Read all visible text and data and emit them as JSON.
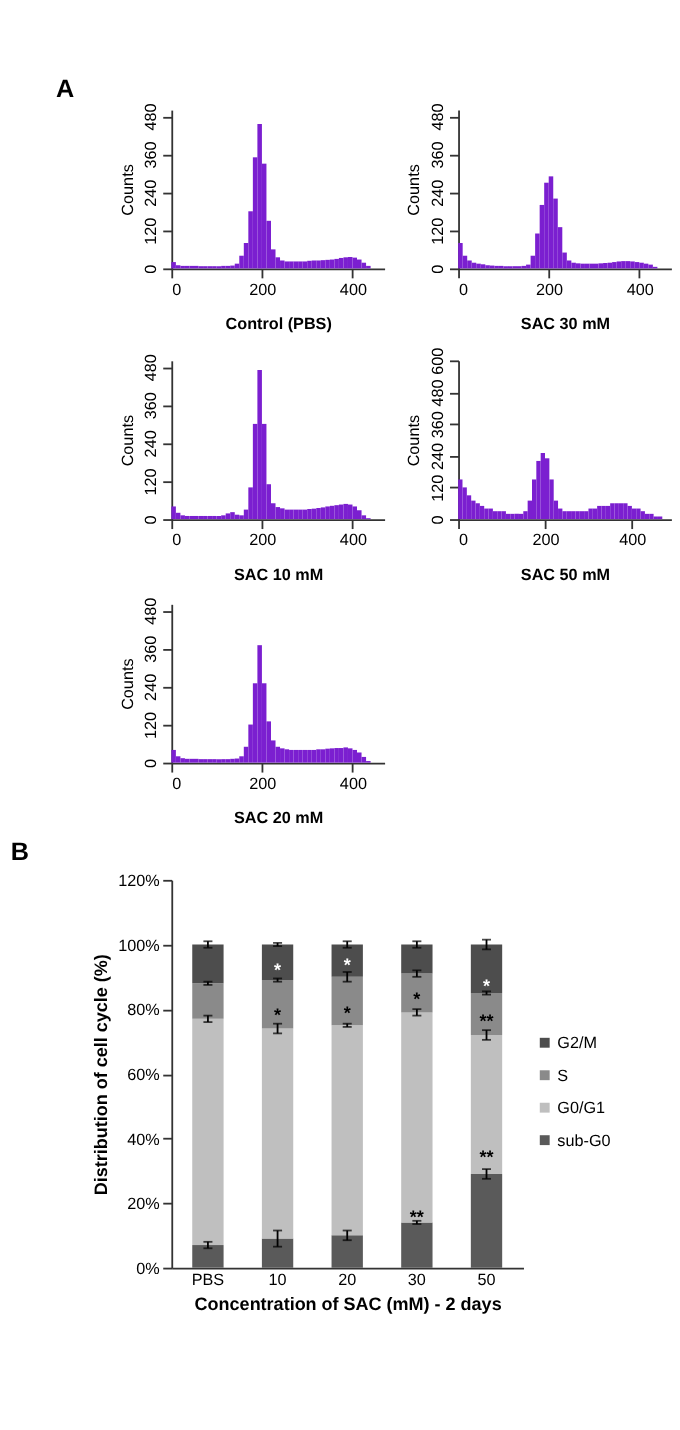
{
  "chart_data": [
    {
      "type": "histogram",
      "title": "A",
      "xlabel": "Control (PBS)",
      "ylabel": "Counts",
      "color": "#7b1fd0",
      "xlim": [
        0,
        470
      ],
      "xticks": [
        0,
        200,
        400
      ],
      "ylim": [
        0,
        500
      ],
      "yticks": [
        0,
        120,
        240,
        360,
        480
      ],
      "bins": [
        0,
        10,
        20,
        30,
        40,
        50,
        60,
        70,
        80,
        90,
        100,
        110,
        120,
        130,
        140,
        150,
        160,
        170,
        180,
        190,
        200,
        210,
        220,
        230,
        240,
        250,
        260,
        270,
        280,
        290,
        300,
        310,
        320,
        330,
        340,
        350,
        360,
        370,
        380,
        390,
        400,
        410,
        420,
        430,
        440
      ],
      "values": [
        20,
        10,
        8,
        8,
        8,
        8,
        7,
        7,
        7,
        7,
        7,
        8,
        8,
        9,
        15,
        40,
        80,
        180,
        350,
        455,
        330,
        150,
        60,
        35,
        25,
        22,
        22,
        22,
        22,
        22,
        24,
        25,
        25,
        26,
        27,
        28,
        30,
        33,
        35,
        36,
        34,
        28,
        18,
        8
      ]
    },
    {
      "type": "histogram",
      "xlabel": "SAC 30 mM",
      "ylabel": "Counts",
      "color": "#7b1fd0",
      "xlim": [
        0,
        470
      ],
      "xticks": [
        0,
        200,
        400
      ],
      "ylim": [
        0,
        500
      ],
      "yticks": [
        0,
        120,
        240,
        360,
        480
      ],
      "bins": [
        0,
        10,
        20,
        30,
        40,
        50,
        60,
        70,
        80,
        90,
        100,
        110,
        120,
        130,
        140,
        150,
        160,
        170,
        180,
        190,
        200,
        210,
        220,
        230,
        240,
        250,
        260,
        270,
        280,
        290,
        300,
        310,
        320,
        330,
        340,
        350,
        360,
        370,
        380,
        390,
        400,
        410,
        420,
        430,
        440
      ],
      "values": [
        80,
        40,
        25,
        18,
        15,
        13,
        10,
        9,
        8,
        8,
        7,
        7,
        7,
        7,
        8,
        12,
        40,
        110,
        200,
        270,
        290,
        220,
        130,
        50,
        25,
        18,
        16,
        15,
        15,
        15,
        15,
        16,
        17,
        18,
        20,
        22,
        23,
        23,
        22,
        20,
        18,
        15,
        12,
        5
      ]
    },
    {
      "type": "histogram",
      "xlabel": "SAC 10 mM",
      "ylabel": "Counts",
      "color": "#7b1fd0",
      "xlim": [
        0,
        470
      ],
      "xticks": [
        0,
        200,
        400
      ],
      "ylim": [
        0,
        500
      ],
      "yticks": [
        0,
        120,
        240,
        360,
        480
      ],
      "bins": [
        0,
        10,
        20,
        30,
        40,
        50,
        60,
        70,
        80,
        90,
        100,
        110,
        120,
        130,
        140,
        150,
        160,
        170,
        180,
        190,
        200,
        210,
        220,
        230,
        240,
        250,
        260,
        270,
        280,
        290,
        300,
        310,
        320,
        330,
        340,
        350,
        360,
        370,
        380,
        390,
        400,
        410,
        420,
        430,
        440
      ],
      "values": [
        40,
        20,
        12,
        10,
        10,
        10,
        10,
        10,
        10,
        10,
        10,
        12,
        18,
        22,
        14,
        12,
        30,
        100,
        300,
        470,
        300,
        110,
        50,
        38,
        34,
        30,
        30,
        30,
        30,
        30,
        32,
        33,
        35,
        37,
        40,
        42,
        44,
        46,
        48,
        46,
        40,
        28,
        12,
        3
      ]
    },
    {
      "type": "histogram",
      "xlabel": "SAC 50 mM",
      "ylabel": "Counts",
      "color": "#7b1fd0",
      "xlim": [
        0,
        490
      ],
      "xticks": [
        0,
        200,
        400
      ],
      "ylim": [
        0,
        600
      ],
      "yticks": [
        0,
        120,
        240,
        360,
        480,
        600
      ],
      "bins": [
        0,
        10,
        20,
        30,
        40,
        50,
        60,
        70,
        80,
        90,
        100,
        110,
        120,
        130,
        140,
        150,
        160,
        170,
        180,
        190,
        200,
        210,
        220,
        230,
        240,
        250,
        260,
        270,
        280,
        290,
        300,
        310,
        320,
        330,
        340,
        350,
        360,
        370,
        380,
        390,
        400,
        410,
        420,
        430,
        440,
        450,
        460,
        470,
        480
      ],
      "values": [
        150,
        120,
        90,
        70,
        60,
        50,
        40,
        40,
        30,
        30,
        30,
        20,
        20,
        20,
        20,
        30,
        70,
        150,
        220,
        250,
        230,
        150,
        70,
        40,
        30,
        30,
        30,
        30,
        30,
        30,
        40,
        40,
        50,
        50,
        50,
        60,
        60,
        60,
        60,
        50,
        40,
        40,
        30,
        20,
        20,
        10,
        10,
        0
      ]
    },
    {
      "type": "histogram",
      "xlabel": "SAC 20 mM",
      "ylabel": "Counts",
      "color": "#7b1fd0",
      "xlim": [
        0,
        470
      ],
      "xticks": [
        0,
        200,
        400
      ],
      "ylim": [
        0,
        500
      ],
      "yticks": [
        0,
        120,
        240,
        360,
        480
      ],
      "bins": [
        0,
        10,
        20,
        30,
        40,
        50,
        60,
        70,
        80,
        90,
        100,
        110,
        120,
        130,
        140,
        150,
        160,
        170,
        180,
        190,
        200,
        210,
        220,
        230,
        240,
        250,
        260,
        270,
        280,
        290,
        300,
        310,
        320,
        330,
        340,
        350,
        360,
        370,
        380,
        390,
        400,
        410,
        420,
        430,
        440
      ],
      "values": [
        40,
        20,
        14,
        12,
        12,
        12,
        11,
        11,
        11,
        11,
        11,
        11,
        11,
        12,
        13,
        20,
        50,
        120,
        250,
        370,
        250,
        130,
        70,
        50,
        45,
        42,
        40,
        40,
        40,
        40,
        40,
        40,
        42,
        42,
        44,
        45,
        46,
        46,
        48,
        45,
        40,
        32,
        18,
        5
      ]
    },
    {
      "type": "bar",
      "title": "B",
      "stacked": true,
      "xlabel": "Concentration of SAC (mM) - 2 days",
      "ylabel": "Distribution of cell cycle (%)",
      "legend": "right",
      "categories": [
        "PBS",
        "10",
        "20",
        "30",
        "50"
      ],
      "ylim": [
        0,
        120
      ],
      "yticks": [
        {
          "value": 0,
          "label": "0%"
        },
        {
          "value": 20,
          "label": "20%"
        },
        {
          "value": 40,
          "label": "40%"
        },
        {
          "value": 60,
          "label": "60%"
        },
        {
          "value": 80,
          "label": "80%"
        },
        {
          "value": 100,
          "label": "100%"
        },
        {
          "value": 120,
          "label": "120%"
        }
      ],
      "series": [
        {
          "name": "sub-G0",
          "color": "#5a5a5a",
          "values": [
            7,
            9,
            10,
            14,
            29
          ],
          "errors": [
            1,
            2.5,
            1.5,
            0.5,
            1.5
          ]
        },
        {
          "name": "G0/G1",
          "color": "#bfbfbf",
          "values": [
            70,
            65,
            65,
            65,
            43
          ],
          "errors": [
            1,
            1.5,
            0.5,
            1,
            1.5
          ]
        },
        {
          "name": "S",
          "color": "#8a8a8a",
          "values": [
            11,
            15,
            15,
            12,
            13
          ],
          "errors": [
            0.5,
            0.5,
            1.5,
            1,
            0.5
          ]
        },
        {
          "name": "G2/M",
          "color": "#4d4d4d",
          "values": [
            12,
            11,
            10,
            9,
            15
          ],
          "errors": [
            1,
            0.5,
            1,
            1,
            1.5
          ]
        }
      ],
      "annotations": [
        {
          "text": "*",
          "x": "10",
          "y": 92
        },
        {
          "text": "*",
          "x": "10",
          "y": 78
        },
        {
          "text": "*",
          "x": "20",
          "y": 93.5
        },
        {
          "text": "*",
          "x": "20",
          "y": 78.5
        },
        {
          "text": "*",
          "x": "30",
          "y": 83
        },
        {
          "text": "**",
          "x": "30",
          "y": 15.5
        },
        {
          "text": "*",
          "x": "50",
          "y": 87
        },
        {
          "text": "**",
          "x": "50",
          "y": 76
        },
        {
          "text": "**",
          "x": "50",
          "y": 34
        }
      ]
    }
  ]
}
